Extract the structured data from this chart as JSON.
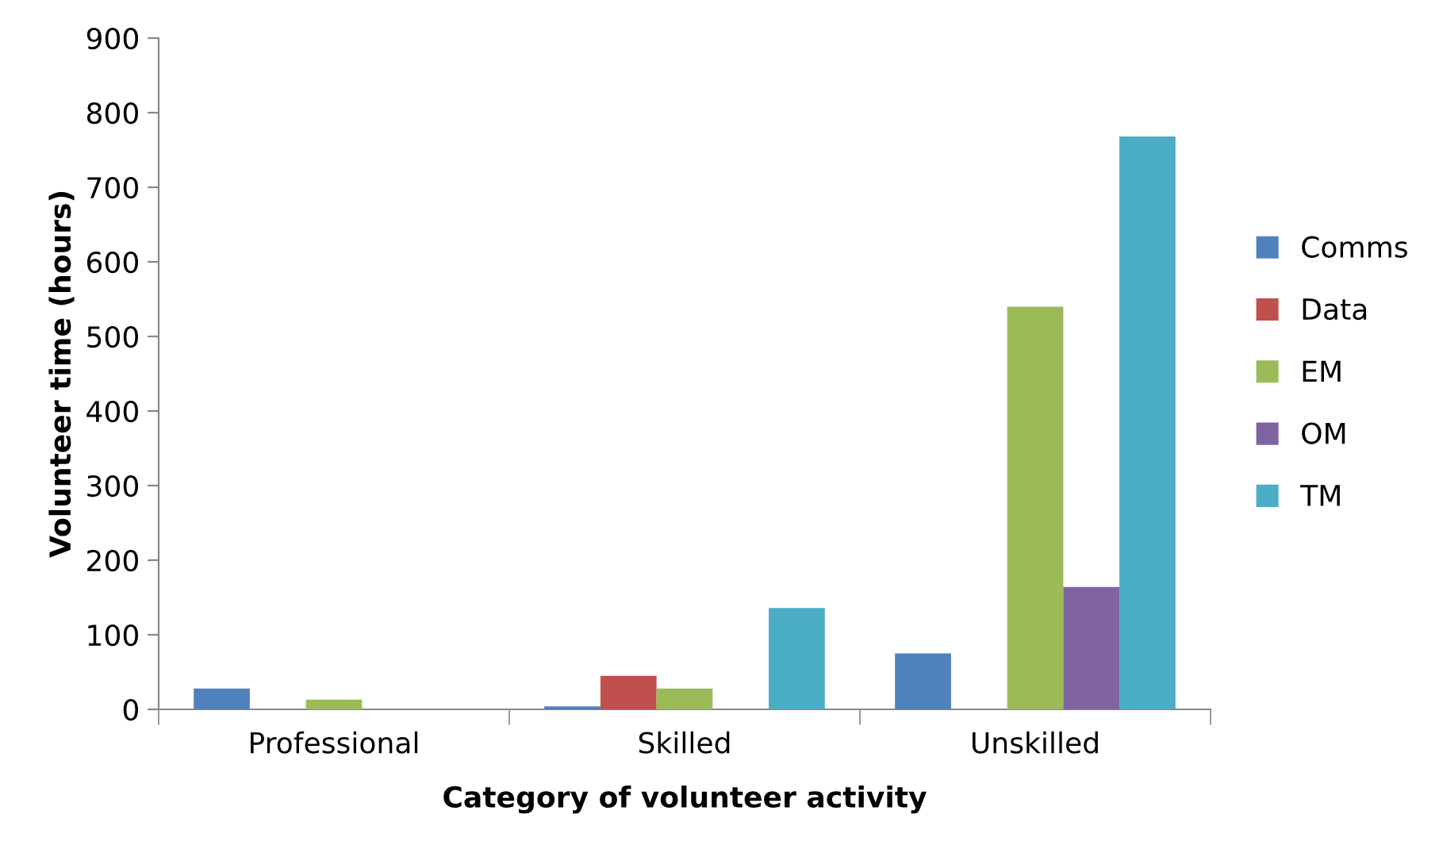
{
  "chart_data": {
    "type": "bar",
    "xlabel": "Category of volunteer activity",
    "ylabel": "Volunteer time (hours)",
    "categories": [
      "Professional",
      "Skilled",
      "Unskilled"
    ],
    "series": [
      {
        "name": "Comms",
        "color": "#4f81bd",
        "values": [
          28,
          4,
          75
        ]
      },
      {
        "name": "Data",
        "color": "#c0504d",
        "values": [
          0,
          45,
          0
        ]
      },
      {
        "name": "EM",
        "color": "#9bbb59",
        "values": [
          13,
          28,
          540
        ]
      },
      {
        "name": "OM",
        "color": "#8064a2",
        "values": [
          0,
          0,
          164
        ]
      },
      {
        "name": "TM",
        "color": "#4bacc6",
        "values": [
          0,
          136,
          768
        ]
      }
    ],
    "ylim": [
      0,
      900
    ],
    "yticks": [
      0,
      100,
      200,
      300,
      400,
      500,
      600,
      700,
      800,
      900
    ],
    "grid": false,
    "legend": "right"
  }
}
